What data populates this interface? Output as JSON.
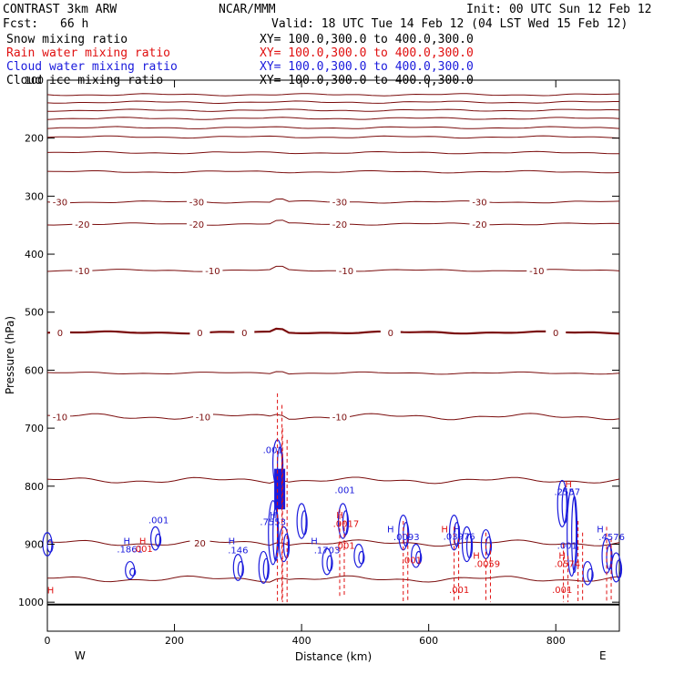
{
  "header": {
    "model": "CONTRAST  3km ARW",
    "org": "NCAR/MMM",
    "init": "Init: 00 UTC Sun 12 Feb 12",
    "fcst_label": "Fcst:",
    "fcst_value": "66 h",
    "valid": "Valid: 18 UTC Tue 14 Feb 12 (04 LST Wed 15 Feb 12)"
  },
  "fields": [
    {
      "name": "Snow mixing ratio",
      "xy": "XY= 100.0,300.0 to 400.0,300.0",
      "color": "#000000"
    },
    {
      "name": "Rain water mixing ratio",
      "xy": "XY= 100.0,300.0 to 400.0,300.0",
      "color": "#e01010"
    },
    {
      "name": "Cloud water mixing ratio",
      "xy": "XY= 100.0,300.0 to 400.0,300.0",
      "color": "#1a1adc"
    },
    {
      "name": "Cloud ice mixing ratio",
      "xy": "XY= 100.0,300.0 to 400.0,300.0",
      "color": "#000000"
    }
  ],
  "chart_data": {
    "type": "contour-cross-section",
    "xlabel": "Distance (km)",
    "ylabel": "Pressure (hPa)",
    "xlim": [
      0,
      900
    ],
    "ylim": [
      1050,
      100
    ],
    "xticks": [
      0,
      200,
      400,
      600,
      800
    ],
    "yticks": [
      200,
      300,
      400,
      500,
      600,
      700,
      800,
      900,
      1000
    ],
    "ytick_labels_extra": [
      "100"
    ],
    "x_end_labels": {
      "left": "W",
      "right": "E"
    },
    "ground_pressure": 1004,
    "temperature_contours": {
      "color": "#7a0c0c",
      "zero_line_pressure": 535,
      "labeled_levels": [
        {
          "value": "-30",
          "pressure": 310,
          "x": [
            20,
            235,
            460,
            680
          ]
        },
        {
          "value": "-20",
          "pressure": 348,
          "x": [
            55,
            235,
            460,
            680
          ]
        },
        {
          "value": "-10",
          "pressure": 428,
          "x": [
            55,
            260,
            470,
            770
          ]
        },
        {
          "value": "0",
          "pressure": 535,
          "x": [
            20,
            240,
            310,
            540,
            800
          ]
        },
        {
          "value": "-10",
          "pressure": 680,
          "x": [
            20,
            245,
            460
          ]
        },
        {
          "value": "20",
          "pressure": 898,
          "x": [
            240
          ]
        }
      ],
      "unlabeled_pressures": [
        125,
        138,
        152,
        166,
        182,
        198,
        225,
        258,
        605,
        790,
        960
      ]
    },
    "cloud_water_labels": [
      {
        "text": ".001",
        "x": 355,
        "p": 743
      },
      {
        "text": ".7553",
        "x": 355,
        "p": 867
      },
      {
        "text": ".001",
        "x": 468,
        "p": 812
      },
      {
        "text": ".001",
        "x": 175,
        "p": 864
      },
      {
        "text": ".1861",
        "x": 130,
        "p": 914
      },
      {
        "text": ".146",
        "x": 300,
        "p": 916
      },
      {
        "text": ".1703",
        "x": 440,
        "p": 916
      },
      {
        "text": ".0093",
        "x": 565,
        "p": 893
      },
      {
        "text": ".03976",
        "x": 648,
        "p": 892
      },
      {
        "text": ".2557",
        "x": 818,
        "p": 815
      },
      {
        "text": ".001",
        "x": 818,
        "p": 908
      },
      {
        "text": ".4576",
        "x": 888,
        "p": 893
      }
    ],
    "rain_water_labels": [
      {
        "text": ".0017",
        "x": 470,
        "p": 870
      },
      {
        "text": ".001",
        "x": 468,
        "p": 908
      },
      {
        "text": ".001",
        "x": 150,
        "p": 913
      },
      {
        "text": ".001",
        "x": 573,
        "p": 933
      },
      {
        "text": ".001",
        "x": 648,
        "p": 984
      },
      {
        "text": ".0059",
        "x": 692,
        "p": 939
      },
      {
        "text": ".0574",
        "x": 818,
        "p": 939
      },
      {
        "text": ".001",
        "x": 810,
        "p": 984
      }
    ],
    "high_markers": [
      {
        "x": 355,
        "p": 855,
        "color": "#1a1adc"
      },
      {
        "x": 150,
        "p": 900,
        "color": "#e01010"
      },
      {
        "x": 125,
        "p": 900,
        "color": "#1a1adc"
      },
      {
        "x": 290,
        "p": 900,
        "color": "#1a1adc"
      },
      {
        "x": 420,
        "p": 900,
        "color": "#1a1adc"
      },
      {
        "x": 460,
        "p": 855,
        "color": "#e01010"
      },
      {
        "x": 540,
        "p": 880,
        "color": "#1a1adc"
      },
      {
        "x": 625,
        "p": 880,
        "color": "#e01010"
      },
      {
        "x": 645,
        "p": 880,
        "color": "#1a1adc"
      },
      {
        "x": 675,
        "p": 925,
        "color": "#e01010"
      },
      {
        "x": 820,
        "p": 802,
        "color": "#e01010"
      },
      {
        "x": 810,
        "p": 925,
        "color": "#e01010"
      },
      {
        "x": 870,
        "p": 880,
        "color": "#1a1adc"
      },
      {
        "x": 5,
        "p": 985,
        "color": "#e01010"
      }
    ]
  }
}
